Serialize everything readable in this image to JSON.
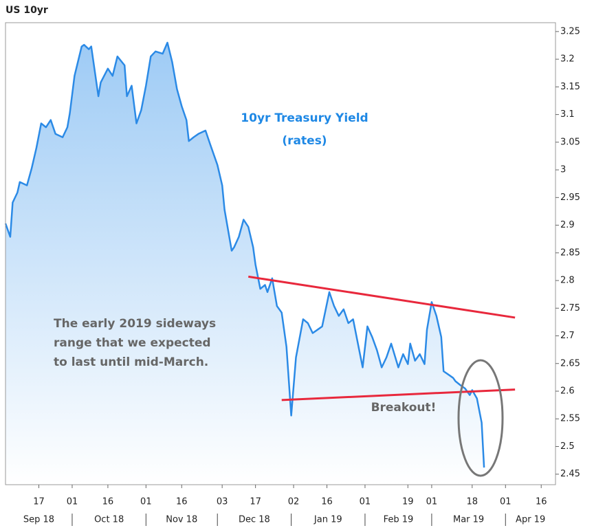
{
  "chart_data": {
    "type": "area",
    "title": "US 10yr",
    "color": "#2b8ae6",
    "fill_top": "#9ecbf5",
    "x": [
      "2018-09-03",
      "2018-09-05",
      "2018-09-06",
      "2018-09-08",
      "2018-09-09",
      "2018-09-12",
      "2018-09-14",
      "2018-09-16",
      "2018-09-18",
      "2018-09-20",
      "2018-09-22",
      "2018-09-24",
      "2018-09-27",
      "2018-09-29",
      "2018-09-30",
      "2018-10-02",
      "2018-10-05",
      "2018-10-06",
      "2018-10-08",
      "2018-10-09",
      "2018-10-12",
      "2018-10-13",
      "2018-10-16",
      "2018-10-18",
      "2018-10-20",
      "2018-10-23",
      "2018-10-24",
      "2018-10-26",
      "2018-10-28",
      "2018-10-30",
      "2018-11-01",
      "2018-11-03",
      "2018-11-05",
      "2018-11-08",
      "2018-11-10",
      "2018-11-12",
      "2018-11-14",
      "2018-11-16",
      "2018-11-18",
      "2018-11-19",
      "2018-11-21",
      "2018-11-23",
      "2018-11-26",
      "2018-11-28",
      "2018-12-01",
      "2018-12-03",
      "2018-12-04",
      "2018-12-07",
      "2018-12-08",
      "2018-12-10",
      "2018-12-12",
      "2018-12-14",
      "2018-12-16",
      "2018-12-17",
      "2018-12-19",
      "2018-12-21",
      "2018-12-22",
      "2018-12-24",
      "2018-12-26",
      "2018-12-28",
      "2018-12-30",
      "2019-01-01",
      "2019-01-03",
      "2019-01-06",
      "2019-01-08",
      "2019-01-10",
      "2019-01-12",
      "2019-01-14",
      "2019-01-17",
      "2019-01-19",
      "2019-01-21",
      "2019-01-23",
      "2019-01-25",
      "2019-01-27",
      "2019-01-29",
      "2019-01-31",
      "2019-02-02",
      "2019-02-04",
      "2019-02-06",
      "2019-02-08",
      "2019-02-10",
      "2019-02-12",
      "2019-02-15",
      "2019-02-17",
      "2019-02-19",
      "2019-02-20",
      "2019-02-22",
      "2019-02-24",
      "2019-02-26",
      "2019-02-27",
      "2019-03-01",
      "2019-03-03",
      "2019-03-05",
      "2019-03-06",
      "2019-03-08",
      "2019-03-10",
      "2019-03-11",
      "2019-03-13",
      "2019-03-15",
      "2019-03-17",
      "2019-03-18",
      "2019-03-20",
      "2019-03-22",
      "2019-03-23"
    ],
    "values": [
      2.903,
      2.879,
      2.941,
      2.959,
      2.978,
      2.972,
      3.003,
      3.04,
      3.084,
      3.077,
      3.09,
      3.065,
      3.059,
      3.077,
      3.102,
      3.17,
      3.223,
      3.226,
      3.218,
      3.223,
      3.133,
      3.158,
      3.183,
      3.17,
      3.205,
      3.189,
      3.133,
      3.152,
      3.084,
      3.108,
      3.152,
      3.205,
      3.214,
      3.21,
      3.23,
      3.195,
      3.146,
      3.115,
      3.09,
      3.052,
      3.059,
      3.065,
      3.071,
      3.046,
      3.009,
      2.972,
      2.928,
      2.854,
      2.86,
      2.879,
      2.91,
      2.897,
      2.86,
      2.829,
      2.785,
      2.792,
      2.779,
      2.804,
      2.754,
      2.742,
      2.68,
      2.556,
      2.661,
      2.73,
      2.723,
      2.705,
      2.711,
      2.717,
      2.779,
      2.754,
      2.736,
      2.748,
      2.723,
      2.73,
      2.686,
      2.643,
      2.717,
      2.698,
      2.674,
      2.643,
      2.661,
      2.686,
      2.643,
      2.667,
      2.649,
      2.686,
      2.655,
      2.667,
      2.649,
      2.711,
      2.761,
      2.736,
      2.698,
      2.636,
      2.63,
      2.624,
      2.618,
      2.611,
      2.605,
      2.593,
      2.602,
      2.587,
      2.543,
      2.462
    ],
    "xlim": [
      "2018-09-03",
      "2019-04-22"
    ],
    "xticks": [
      {
        "value": "2018-09-17",
        "label": "17"
      },
      {
        "value": "2018-10-01",
        "label": "01"
      },
      {
        "value": "2018-10-16",
        "label": "16"
      },
      {
        "value": "2018-11-01",
        "label": "01"
      },
      {
        "value": "2018-11-16",
        "label": "16"
      },
      {
        "value": "2018-12-03",
        "label": "03"
      },
      {
        "value": "2018-12-17",
        "label": "17"
      },
      {
        "value": "2019-01-02",
        "label": "02"
      },
      {
        "value": "2019-01-16",
        "label": "16"
      },
      {
        "value": "2019-02-01",
        "label": "01"
      },
      {
        "value": "2019-02-19",
        "label": "19"
      },
      {
        "value": "2019-03-01",
        "label": "01"
      },
      {
        "value": "2019-03-18",
        "label": "18"
      },
      {
        "value": "2019-04-01",
        "label": "01"
      },
      {
        "value": "2019-04-16",
        "label": "16"
      }
    ],
    "month_labels": [
      {
        "value": "2018-09",
        "label": "Sep 18"
      },
      {
        "value": "2018-10",
        "label": "Oct 18"
      },
      {
        "value": "2018-11",
        "label": "Nov 18"
      },
      {
        "value": "2018-12",
        "label": "Dec 18"
      },
      {
        "value": "2019-01",
        "label": "Jan 19"
      },
      {
        "value": "2019-02",
        "label": "Feb 19"
      },
      {
        "value": "2019-03",
        "label": "Mar 19"
      },
      {
        "value": "2019-04",
        "label": "Apr 19"
      }
    ],
    "ylim": [
      2.431,
      3.266
    ],
    "yticks": [
      2.45,
      2.5,
      2.55,
      2.6,
      2.65,
      2.7,
      2.75,
      2.8,
      2.85,
      2.9,
      2.95,
      3,
      3.05,
      3.1,
      3.15,
      3.2,
      3.25
    ],
    "trendlines": [
      {
        "color": "#e8283c",
        "x": [
          "2018-12-14",
          "2019-04-05"
        ],
        "y": [
          2.807,
          2.733
        ]
      },
      {
        "color": "#e8283c",
        "x": [
          "2018-12-28",
          "2019-04-05"
        ],
        "y": [
          2.584,
          2.603
        ]
      }
    ],
    "annotations": [
      {
        "color": "#1e88e5",
        "lines": [
          "10yr Treasury Yield",
          "(rates)"
        ]
      },
      {
        "color": "#666666",
        "lines": [
          "The early 2019 sideways",
          "range that we expected",
          "to last until mid-March."
        ]
      },
      {
        "color": "#666666",
        "lines": [
          "Breakout!"
        ]
      }
    ]
  }
}
